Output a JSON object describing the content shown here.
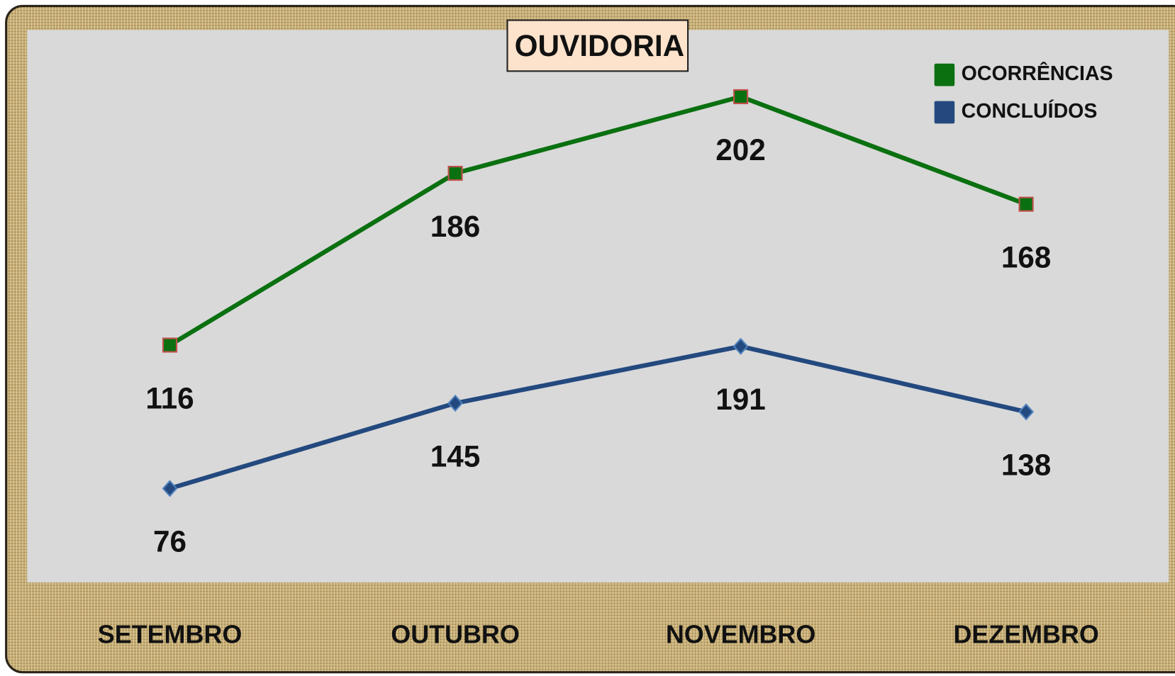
{
  "chart_data": {
    "type": "line",
    "stacked": true,
    "title": "OUVIDORIA",
    "categories": [
      "SETEMBRO",
      "OUTUBRO",
      "NOVEMBRO",
      "DEZEMBRO"
    ],
    "series": [
      {
        "name": "CONCLUÍDOS",
        "color": "#23497f",
        "marker": "diamond",
        "values": [
          76,
          145,
          191,
          138
        ]
      },
      {
        "name": "OCORRÊNCIAS",
        "color": "#0a7010",
        "marker": "square",
        "values": [
          116,
          186,
          202,
          168
        ]
      }
    ],
    "ylim": [
      0,
      447
    ],
    "legend": "top-right"
  }
}
